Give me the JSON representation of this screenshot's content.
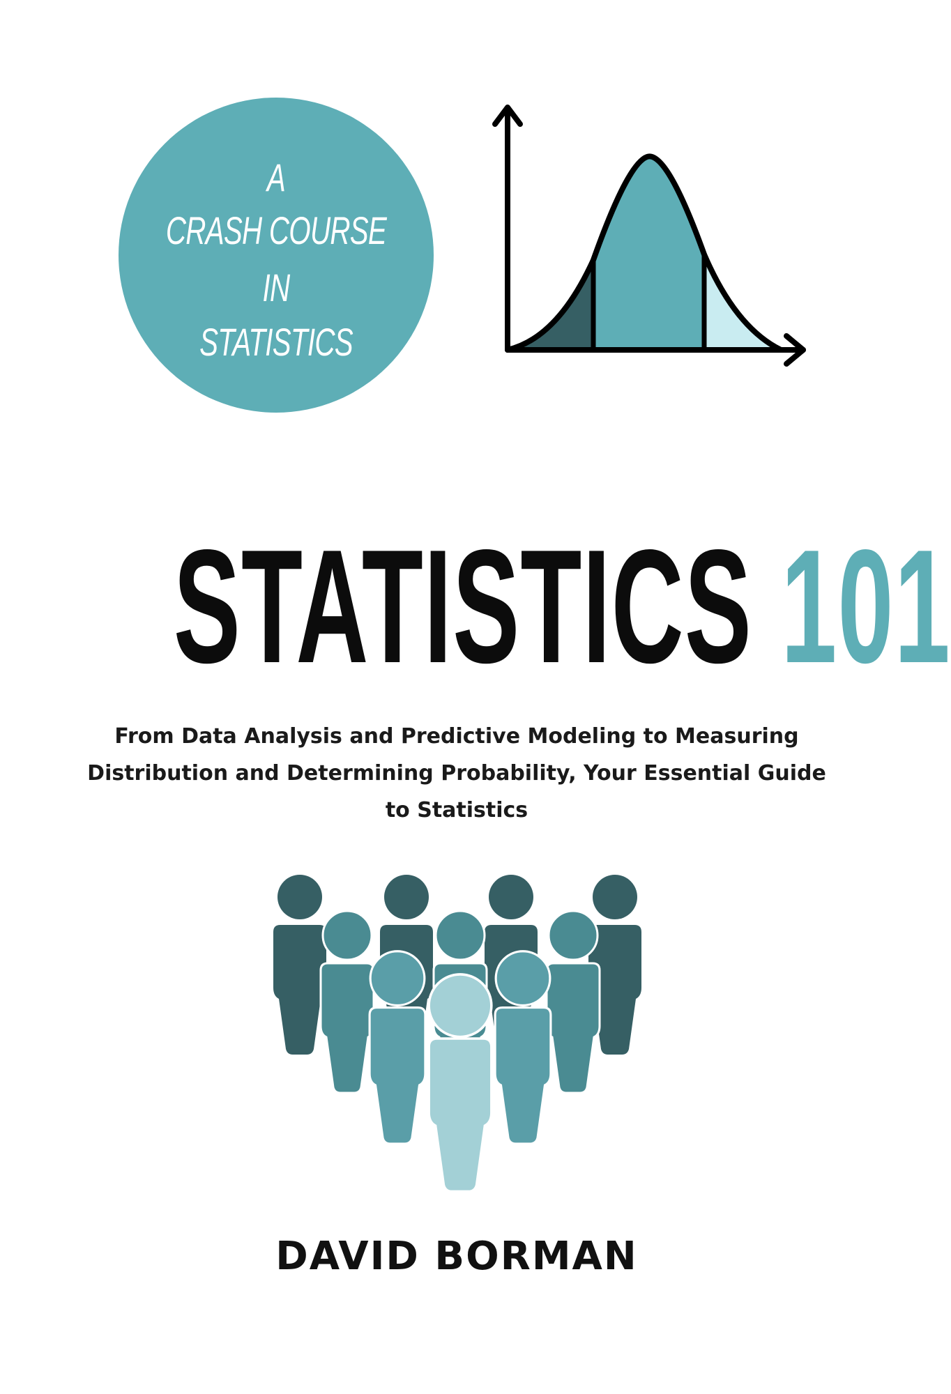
{
  "colors": {
    "accent": "#5eaeb6",
    "dark_teal": "#365f64",
    "mid_teal": "#4a8b92",
    "light_teal": "#a3d0d6",
    "pale_teal": "#c9ecf1",
    "text_dark": "#0c0c0c"
  },
  "badge": {
    "line1": "A",
    "line2": "CRASH COURSE",
    "line3": "IN",
    "line4": "STATISTICS"
  },
  "title": {
    "main": "STATISTICS",
    "number": "101"
  },
  "subtitle": {
    "line1": "From Data Analysis and Predictive Modeling to Measuring",
    "line2": "Distribution and Determining Probability, Your Essential Guide",
    "line3": "to Statistics"
  },
  "author": "DAVID BORMAN",
  "icons": {
    "chart": "bell-curve-icon",
    "people": "people-group-icon"
  }
}
